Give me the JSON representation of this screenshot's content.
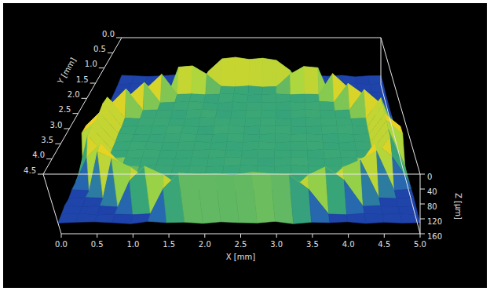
{
  "chart_data": {
    "type": "surface",
    "x_label": "X [mm]",
    "y_label": "Y [mm]",
    "z_label": "Z [µm]",
    "xlim": [
      0,
      5
    ],
    "ylim": [
      0,
      4.5
    ],
    "zlim": [
      0,
      160
    ],
    "xticks": [
      {
        "value": 0,
        "label": "0.0"
      },
      0.5,
      {
        "value": 1,
        "label": "1.0"
      },
      1.5,
      {
        "value": 2,
        "label": "2.0"
      },
      2.5,
      {
        "value": 3,
        "label": "3.0"
      },
      3.5,
      {
        "value": 4,
        "label": "4.0"
      },
      4.5,
      {
        "value": 5,
        "label": "5.0"
      }
    ],
    "yticks": [
      {
        "value": 0,
        "label": "0.0"
      },
      0.5,
      {
        "value": 1,
        "label": "1.0"
      },
      1.5,
      {
        "value": 2,
        "label": "2.0"
      },
      2.5,
      {
        "value": 3,
        "label": "3.0"
      },
      3.5,
      {
        "value": 4,
        "label": "4.0"
      },
      4.5
    ],
    "zticks": [
      0,
      40,
      80,
      120,
      160
    ],
    "x": [
      0,
      0.25,
      0.5,
      0.75,
      1,
      1.25,
      1.5,
      1.75,
      2,
      2.25,
      2.5,
      2.75,
      3,
      3.25,
      3.5,
      3.75,
      4,
      4.25,
      4.5,
      4.75,
      5
    ],
    "y": [
      0,
      0.25,
      0.5,
      0.75,
      1,
      1.25,
      1.5,
      1.75,
      2,
      2.25,
      2.5,
      2.75,
      3,
      3.25,
      3.5,
      3.75,
      4,
      4.25,
      4.5
    ],
    "z": [
      [
        128,
        130,
        132,
        130,
        127,
        131,
        129,
        133,
        130,
        128,
        131,
        130,
        127,
        132,
        130,
        129,
        131,
        128,
        133,
        130,
        129
      ],
      [
        131,
        129,
        127,
        133,
        130,
        128,
        132,
        126,
        129,
        131,
        128,
        133,
        130,
        127,
        131,
        132,
        129,
        130,
        128,
        131,
        127
      ],
      [
        130,
        132,
        128,
        131,
        129,
        133,
        127,
        60,
        20,
        15,
        22,
        18,
        25,
        58,
        128,
        131,
        130,
        127,
        132,
        129,
        131
      ],
      [
        129,
        127,
        131,
        130,
        128,
        22,
        18,
        45,
        84,
        86,
        83,
        87,
        85,
        45,
        20,
        24,
        130,
        132,
        128,
        131,
        130
      ],
      [
        132,
        130,
        128,
        60,
        20,
        85,
        83,
        86,
        84,
        82,
        87,
        85,
        83,
        86,
        84,
        85,
        18,
        60,
        129,
        127,
        131
      ],
      [
        128,
        131,
        60,
        22,
        86,
        84,
        82,
        85,
        87,
        83,
        86,
        84,
        85,
        83,
        86,
        82,
        84,
        25,
        58,
        131,
        129
      ],
      [
        130,
        60,
        18,
        85,
        83,
        86,
        84,
        82,
        85,
        87,
        84,
        83,
        86,
        85,
        82,
        84,
        86,
        83,
        20,
        60,
        128
      ],
      [
        127,
        20,
        84,
        86,
        83,
        85,
        87,
        82,
        84,
        86,
        83,
        85,
        84,
        87,
        82,
        85,
        83,
        86,
        84,
        22,
        131
      ],
      [
        131,
        15,
        86,
        84,
        82,
        85,
        83,
        87,
        84,
        82,
        86,
        84,
        83,
        85,
        87,
        83,
        84,
        82,
        86,
        18,
        129
      ],
      [
        60,
        20,
        83,
        85,
        87,
        84,
        82,
        86,
        85,
        83,
        84,
        87,
        82,
        85,
        84,
        86,
        83,
        85,
        84,
        24,
        62
      ],
      [
        58,
        22,
        85,
        83,
        84,
        86,
        85,
        82,
        87,
        84,
        85,
        83,
        86,
        84,
        82,
        85,
        87,
        83,
        85,
        20,
        60
      ],
      [
        130,
        18,
        84,
        86,
        82,
        85,
        84,
        86,
        83,
        85,
        87,
        82,
        84,
        86,
        85,
        83,
        84,
        86,
        83,
        25,
        128
      ],
      [
        128,
        20,
        86,
        83,
        85,
        84,
        87,
        83,
        85,
        82,
        84,
        86,
        85,
        83,
        84,
        87,
        82,
        85,
        86,
        22,
        132
      ],
      [
        131,
        60,
        20,
        84,
        86,
        83,
        85,
        84,
        86,
        85,
        83,
        84,
        87,
        82,
        85,
        84,
        86,
        85,
        18,
        58,
        130
      ],
      [
        129,
        132,
        22,
        45,
        85,
        83,
        86,
        84,
        82,
        85,
        87,
        84,
        83,
        86,
        85,
        84,
        83,
        45,
        20,
        131,
        128
      ],
      [
        132,
        128,
        130,
        20,
        45,
        84,
        86,
        83,
        85,
        84,
        82,
        86,
        85,
        83,
        84,
        85,
        45,
        24,
        129,
        131,
        127
      ],
      [
        128,
        131,
        129,
        132,
        60,
        20,
        45,
        85,
        83,
        86,
        84,
        85,
        83,
        86,
        45,
        22,
        58,
        130,
        128,
        132,
        129
      ],
      [
        130,
        127,
        132,
        129,
        131,
        128,
        60,
        18,
        22,
        20,
        25,
        15,
        20,
        22,
        62,
        129,
        131,
        127,
        130,
        128,
        131
      ],
      [
        131,
        129,
        128,
        130,
        133,
        127,
        130,
        129,
        132,
        128,
        130,
        131,
        127,
        133,
        129,
        130,
        128,
        132,
        129,
        131,
        130
      ]
    ]
  }
}
